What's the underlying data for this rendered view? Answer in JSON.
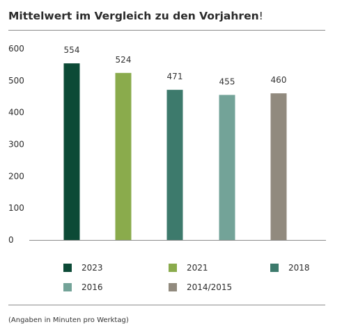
{
  "header": {
    "title": "Mittelwert im Vergleich zu den Vorjahren",
    "title_suffix": "!"
  },
  "footnote": "(Angaben in Minuten pro Werktag)",
  "chart_data": {
    "type": "bar",
    "title": "Mittelwert im Vergleich zu den Vorjahren!",
    "xlabel": "",
    "ylabel": "",
    "categories": [
      "2023",
      "2021",
      "2018",
      "2016",
      "2014/2015"
    ],
    "values": [
      554,
      524,
      471,
      455,
      460
    ],
    "data_labels": [
      "554",
      "524",
      "471",
      "455",
      "460"
    ],
    "colors": [
      "#0c4a36",
      "#8aab4c",
      "#3d7a6c",
      "#73a398",
      "#918a7e"
    ],
    "ylim": [
      0,
      600
    ],
    "yticks": [
      "0",
      "100",
      "200",
      "300",
      "400",
      "500",
      "600"
    ],
    "grid": false,
    "legend_position": "bottom"
  }
}
